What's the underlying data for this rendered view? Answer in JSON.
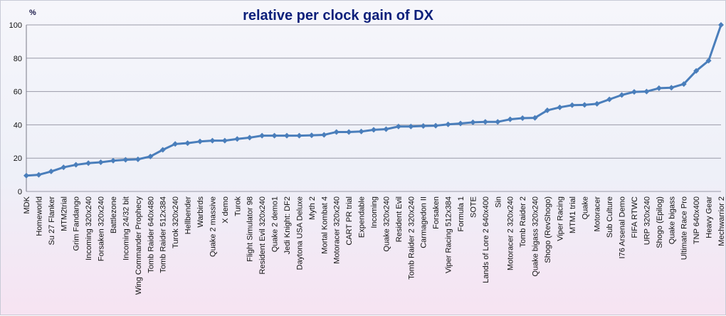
{
  "chart_data": {
    "type": "line",
    "title": "relative per clock gain of DX",
    "unit": "%",
    "ylim": [
      0,
      100
    ],
    "yticks": [
      0,
      20,
      40,
      60,
      80,
      100
    ],
    "grid": "horizontal",
    "legend": "none",
    "line_color": "#4a7ebb",
    "categories": [
      "MDK",
      "Homeworld",
      "Su 27 Flanker",
      "MTM2trial",
      "Grim Fandango",
      "Incoming 320x240",
      "Forsaken 320x240",
      "Battlezone",
      "Incoming 24/32 bit",
      "Wing Commander Prophecy",
      "Tomb Raider 640x480",
      "Tomb Raider 512x384",
      "Turok 320x240",
      "Hellbender",
      "Warbirds",
      "Quake 2 massive",
      "X demo",
      "Turok",
      "Flight Simulator 98",
      "Resident Evil 320x240",
      "Quake 2 demo1",
      "Jedi Knight: DF2",
      "Daytona USA Deluxe",
      "Myth 2",
      "Mortal Kombat 4",
      "Motoracer 320x240",
      "CART PR trial",
      "Expendable",
      "Incoming",
      "Quake 320x240",
      "Resident Evil",
      "Tomb Raider 2 320x240",
      "Carmagedon II",
      "Forsaken",
      "Viper Racing 512x384",
      "Formula 1",
      "SOTE",
      "Lands of Lore 2 640x400",
      "Sin",
      "Motoracer 2 320x240",
      "Tomb Raider 2",
      "Quake bigass 320x240",
      "Shogo (RevShogo)",
      "Viper Racing",
      "MTM1 trial",
      "Quake",
      "Motoracer",
      "Sub Culture",
      "I76 Arsenal Demo",
      "FIFA RTWC",
      "URP 320x240",
      "Shogo (Epilog)",
      "Quake bigass",
      "Ultimate Race Pro",
      "TNP 640x400",
      "Heavy Gear",
      "Mechwarrior 2"
    ],
    "values": [
      9.5,
      10,
      12,
      14.5,
      16,
      17,
      17.5,
      18.5,
      19,
      19.3,
      21,
      25,
      28.5,
      29,
      30,
      30.5,
      30.5,
      31.5,
      32.3,
      33.5,
      33.5,
      33.5,
      33.5,
      33.7,
      34,
      35.7,
      35.7,
      36,
      37,
      37.4,
      39,
      39,
      39.3,
      39.5,
      40.3,
      40.8,
      41.5,
      41.8,
      41.8,
      43.3,
      44,
      44.2,
      48.7,
      50.5,
      51.8,
      52,
      52.6,
      55.3,
      57.9,
      59.8,
      60,
      62,
      62.3,
      64.5,
      72.4,
      78.5,
      100
    ]
  }
}
